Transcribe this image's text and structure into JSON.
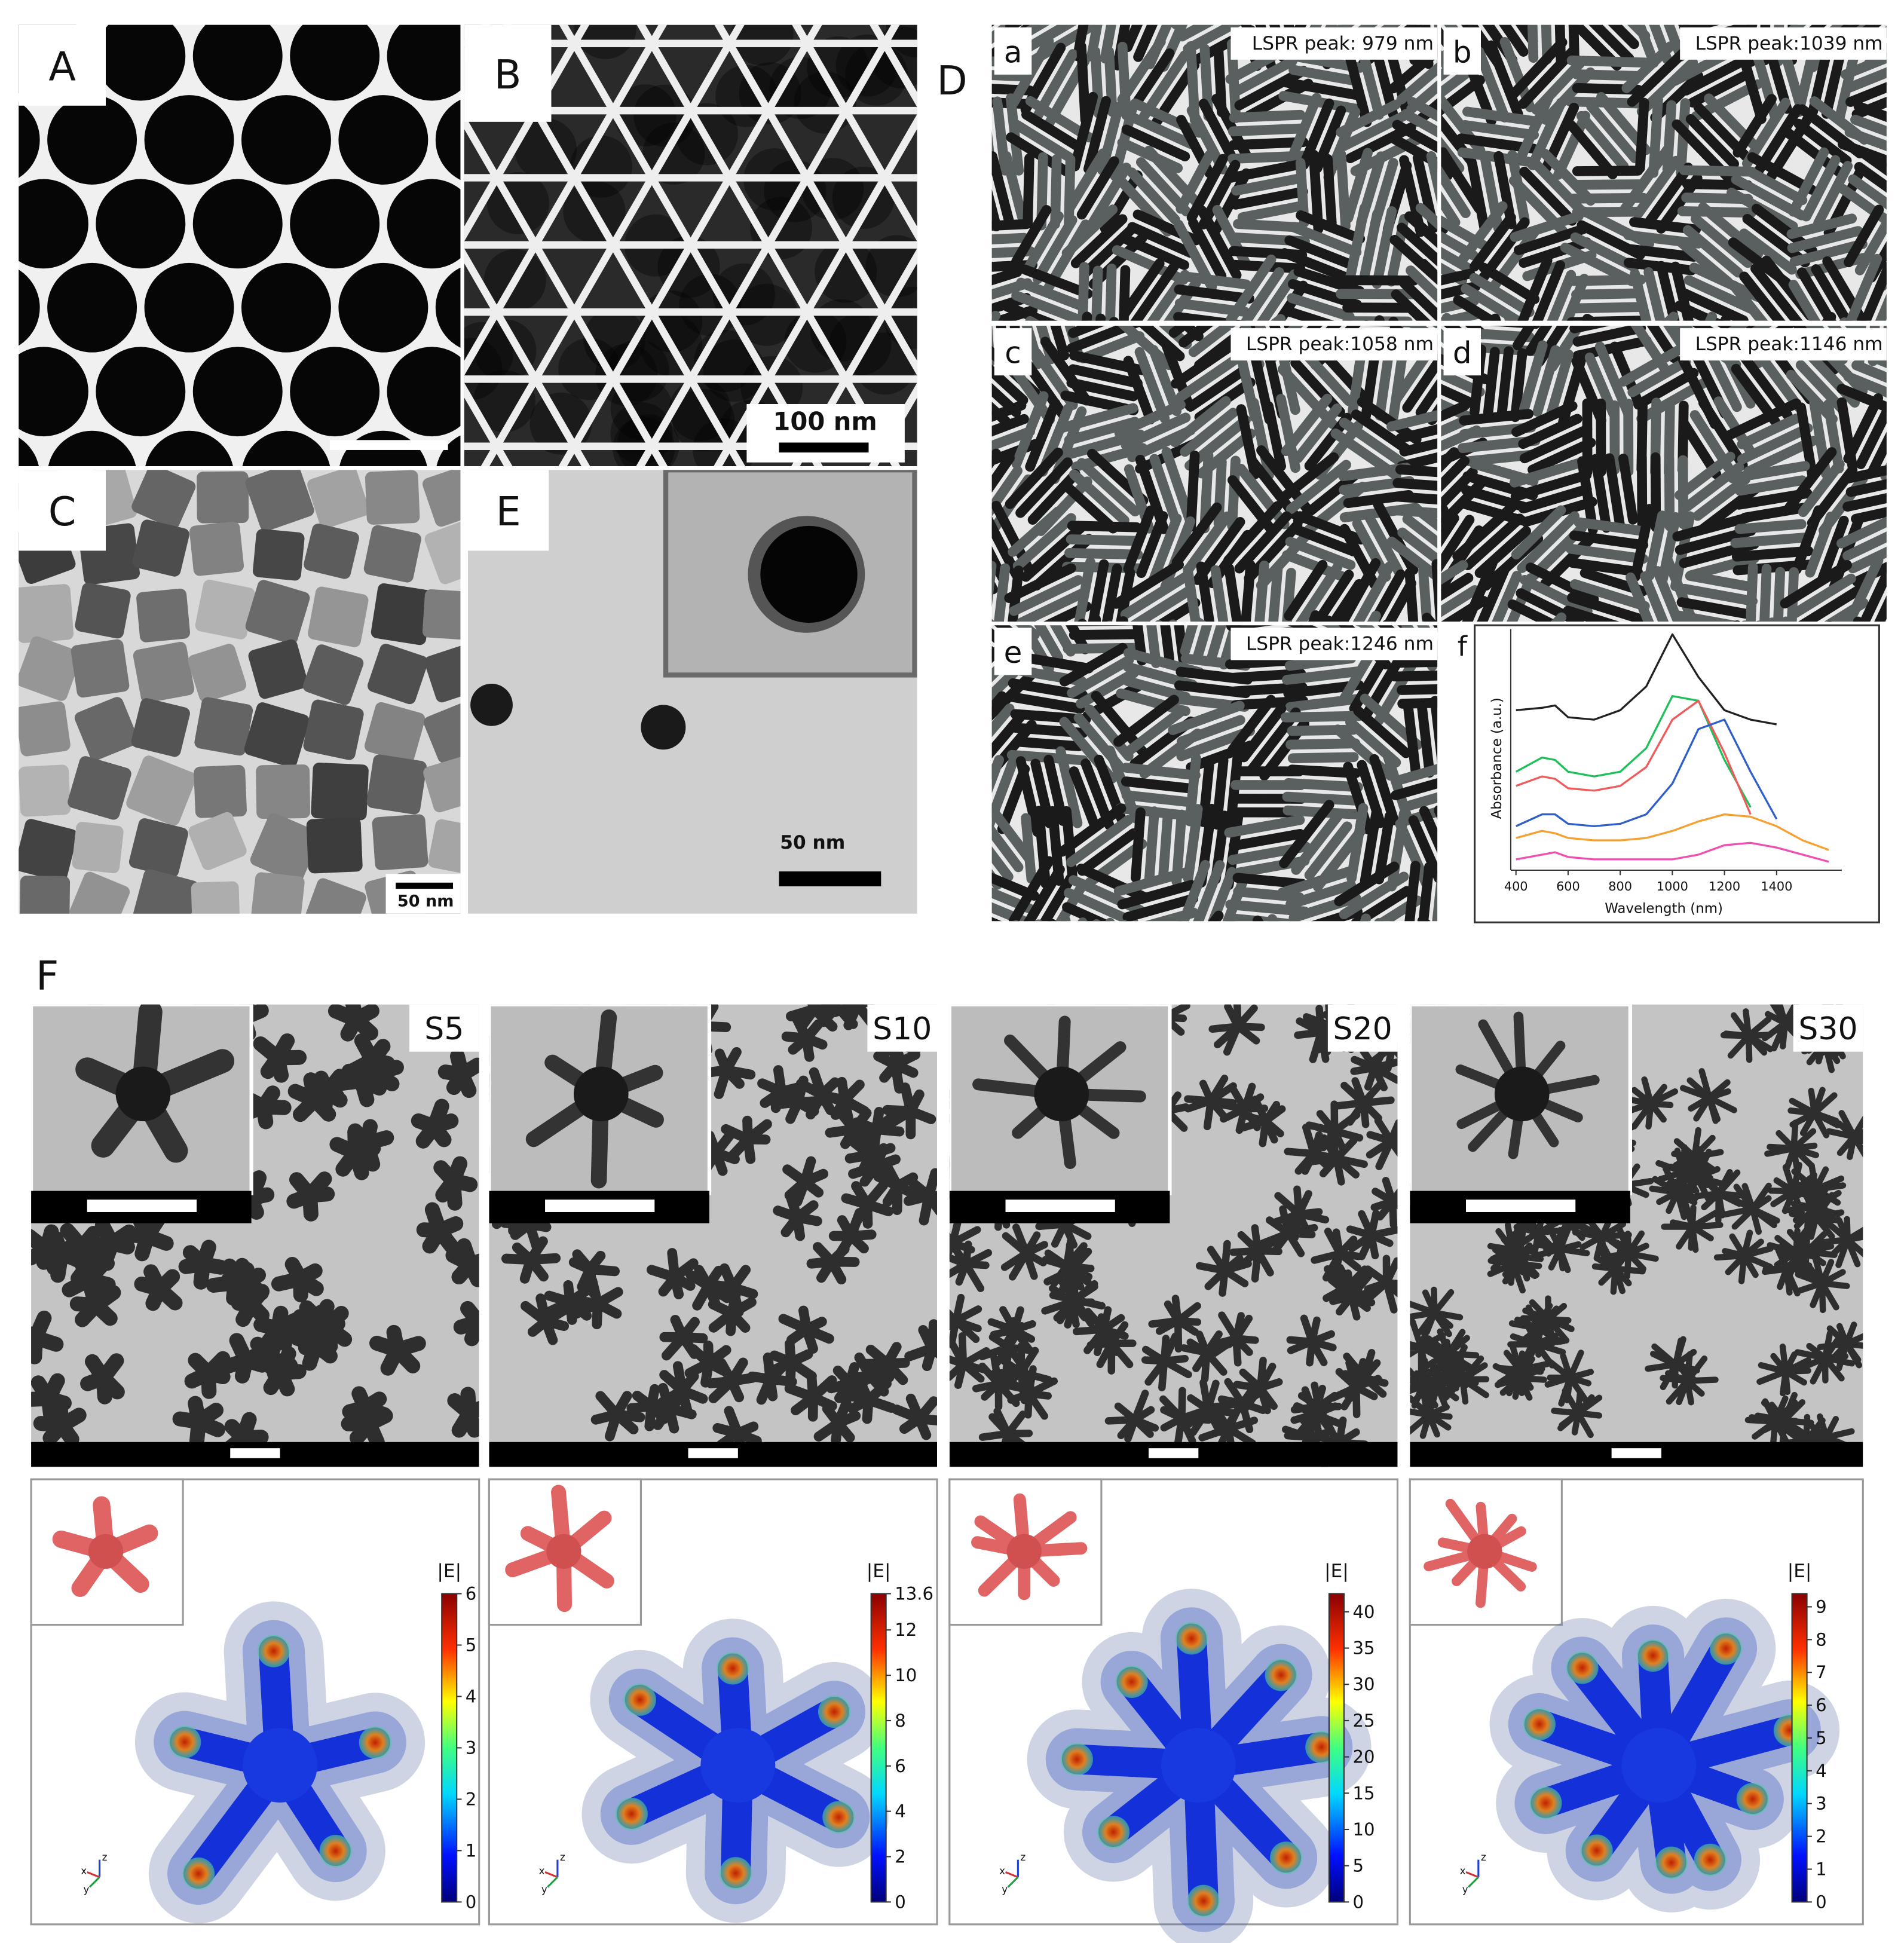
{
  "panel_labels": {
    "A": "A",
    "B": "B",
    "C": "C",
    "D": "D",
    "E": "E",
    "F": "F"
  },
  "scale_bars": {
    "B": "100 nm",
    "C": "50 nm",
    "E": "50 nm"
  },
  "d_subpanels": [
    {
      "label": "a",
      "note": "LSPR peak: 979 nm"
    },
    {
      "label": "b",
      "note": "LSPR peak:1039 nm"
    },
    {
      "label": "c",
      "note": "LSPR peak:1058 nm"
    },
    {
      "label": "d",
      "note": "LSPR peak:1146 nm"
    },
    {
      "label": "e",
      "note": "LSPR peak:1246 nm"
    }
  ],
  "absorbance": {
    "label": "f",
    "type": "line",
    "x_label": "Wavelength (nm)",
    "y_label": "Absorbance (a.u.)",
    "x": [
      400,
      500,
      550,
      600,
      700,
      800,
      900,
      1000,
      1100,
      1200,
      1300,
      1400,
      1500,
      1600
    ],
    "xlim": [
      380,
      1650
    ],
    "ylim": [
      0,
      1.05
    ],
    "xticks": [
      400,
      600,
      800,
      1000,
      1200,
      1400
    ],
    "series": [
      {
        "color": "#222222",
        "values": [
          0.66,
          0.67,
          0.68,
          0.63,
          0.62,
          0.66,
          0.76,
          0.98,
          0.8,
          0.66,
          0.62,
          0.6,
          null,
          null
        ]
      },
      {
        "color": "#1fbf5a",
        "values": [
          0.4,
          0.46,
          0.45,
          0.4,
          0.38,
          0.4,
          0.5,
          0.72,
          0.7,
          0.45,
          0.25,
          null,
          null,
          null
        ]
      },
      {
        "color": "#f05a5a",
        "values": [
          0.34,
          0.38,
          0.37,
          0.33,
          0.32,
          0.34,
          0.42,
          0.62,
          0.7,
          0.48,
          0.22,
          null,
          null,
          null
        ]
      },
      {
        "color": "#2f5fc8",
        "values": [
          0.17,
          0.22,
          0.22,
          0.18,
          0.17,
          0.18,
          0.22,
          0.35,
          0.58,
          0.62,
          0.4,
          0.2,
          null,
          null
        ]
      },
      {
        "color": "#f5a030",
        "values": [
          0.12,
          0.15,
          0.14,
          0.12,
          0.11,
          0.11,
          0.12,
          0.15,
          0.19,
          0.22,
          0.21,
          0.17,
          0.11,
          0.07
        ]
      },
      {
        "color": "#ee4fb0",
        "values": [
          0.03,
          0.05,
          0.06,
          0.04,
          0.03,
          0.03,
          0.03,
          0.03,
          0.05,
          0.09,
          0.1,
          0.08,
          0.05,
          0.02
        ]
      }
    ]
  },
  "star_samples": [
    {
      "name": "S5",
      "field_label": "|E|",
      "colorbar": {
        "lim": [
          0,
          6
        ],
        "ticks": [
          0,
          1,
          2,
          3,
          4,
          5,
          6
        ]
      }
    },
    {
      "name": "S10",
      "field_label": "|E|",
      "colorbar": {
        "lim": [
          0,
          13.6
        ],
        "ticks": [
          0,
          2,
          4,
          6,
          8,
          10,
          12,
          13.6
        ]
      }
    },
    {
      "name": "S20",
      "field_label": "|E|",
      "colorbar": {
        "lim": [
          0,
          42.5
        ],
        "ticks": [
          0,
          5,
          10,
          15,
          20,
          25,
          30,
          35,
          40
        ]
      }
    },
    {
      "name": "S30",
      "field_label": "|E|",
      "colorbar": {
        "lim": [
          0,
          9.4
        ],
        "ticks": [
          0,
          1,
          2,
          3,
          4,
          5,
          6,
          7,
          8,
          9
        ]
      }
    }
  ],
  "axis_letters": [
    "x",
    "y",
    "z"
  ]
}
